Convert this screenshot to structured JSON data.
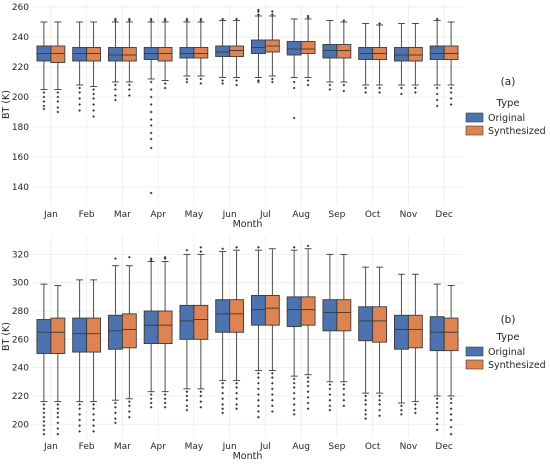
{
  "colors": {
    "original": "#4c72b0",
    "synthesized": "#dd8452",
    "plot_background": "#ffffff",
    "grid": "#ebebeb",
    "whisker": "#3a3a3a"
  },
  "chart_data": [
    {
      "type": "box",
      "panel_label": "(a)",
      "xlabel": "Month",
      "ylabel": "BT (K)",
      "ylim": [
        128,
        262
      ],
      "yticks": [
        140,
        160,
        180,
        200,
        220,
        240,
        260
      ],
      "grid": true,
      "legend_placement": "right",
      "legend_title": "Type",
      "categories": [
        "Jan",
        "Feb",
        "Mar",
        "Apr",
        "May",
        "Jun",
        "Jul",
        "Aug",
        "Sep",
        "Oct",
        "Nov",
        "Dec"
      ],
      "series": [
        {
          "name": "Original",
          "stats": [
            {
              "q1": 224,
              "median": 229,
              "q3": 234,
              "whislo": 205,
              "whishi": 250,
              "fliers": [
                203,
                200,
                197,
                194,
                192
              ]
            },
            {
              "q1": 224,
              "median": 229,
              "q3": 233,
              "whislo": 208,
              "whishi": 250,
              "fliers": [
                206,
                203,
                199,
                195,
                191
              ]
            },
            {
              "q1": 224,
              "median": 228,
              "q3": 233,
              "whislo": 210,
              "whishi": 250,
              "fliers": [
                251,
                252,
                208,
                205,
                201,
                198
              ]
            },
            {
              "q1": 225,
              "median": 229,
              "q3": 233,
              "whislo": 212,
              "whishi": 250,
              "fliers": [
                251,
                252,
                210,
                205,
                200,
                195,
                190,
                185,
                181,
                176,
                172,
                166,
                136
              ]
            },
            {
              "q1": 226,
              "median": 229,
              "q3": 233,
              "whislo": 214,
              "whishi": 250,
              "fliers": [
                251,
                252,
                212,
                210
              ]
            },
            {
              "q1": 227,
              "median": 230,
              "q3": 234,
              "whislo": 213,
              "whishi": 251,
              "fliers": [
                252,
                211,
                209
              ]
            },
            {
              "q1": 229,
              "median": 233,
              "q3": 238,
              "whislo": 213,
              "whishi": 254,
              "fliers": [
                255,
                257,
                258,
                211,
                210
              ]
            },
            {
              "q1": 228,
              "median": 232,
              "q3": 237,
              "whislo": 213,
              "whishi": 252,
              "fliers": [
                210,
                206,
                186
              ]
            },
            {
              "q1": 226,
              "median": 231,
              "q3": 235,
              "whislo": 210,
              "whishi": 251,
              "fliers": [
                208,
                205
              ]
            },
            {
              "q1": 225,
              "median": 229,
              "q3": 233,
              "whislo": 208,
              "whishi": 249,
              "fliers": [
                206,
                203
              ]
            },
            {
              "q1": 224,
              "median": 228,
              "q3": 233,
              "whislo": 208,
              "whishi": 249,
              "fliers": [
                206,
                202
              ]
            },
            {
              "q1": 225,
              "median": 229,
              "q3": 234,
              "whislo": 208,
              "whishi": 251,
              "fliers": [
                252,
                206,
                202,
                198,
                194
              ]
            }
          ]
        },
        {
          "name": "Synthesized",
          "stats": [
            {
              "q1": 223,
              "median": 229,
              "q3": 234,
              "whislo": 205,
              "whishi": 250,
              "fliers": [
                203,
                200,
                197,
                193,
                190
              ]
            },
            {
              "q1": 224,
              "median": 229,
              "q3": 233,
              "whislo": 207,
              "whishi": 250,
              "fliers": [
                205,
                202,
                199,
                195,
                191,
                187
              ]
            },
            {
              "q1": 224,
              "median": 228,
              "q3": 233,
              "whislo": 210,
              "whishi": 250,
              "fliers": [
                251,
                252,
                208,
                205,
                201
              ]
            },
            {
              "q1": 224,
              "median": 229,
              "q3": 233,
              "whislo": 211,
              "whishi": 250,
              "fliers": [
                251,
                252,
                209,
                206
              ]
            },
            {
              "q1": 226,
              "median": 229,
              "q3": 233,
              "whislo": 214,
              "whishi": 250,
              "fliers": [
                251,
                252,
                212,
                209
              ]
            },
            {
              "q1": 227,
              "median": 231,
              "q3": 234,
              "whislo": 213,
              "whishi": 251,
              "fliers": [
                252,
                211,
                208
              ]
            },
            {
              "q1": 230,
              "median": 234,
              "q3": 238,
              "whislo": 214,
              "whishi": 254,
              "fliers": [
                255,
                257,
                212,
                210
              ]
            },
            {
              "q1": 229,
              "median": 232,
              "q3": 237,
              "whislo": 213,
              "whishi": 252,
              "fliers": [
                253,
                254,
                211,
                208
              ]
            },
            {
              "q1": 226,
              "median": 231,
              "q3": 235,
              "whislo": 210,
              "whishi": 250,
              "fliers": [
                251,
                208,
                204
              ]
            },
            {
              "q1": 225,
              "median": 229,
              "q3": 233,
              "whislo": 208,
              "whishi": 248,
              "fliers": [
                249,
                206,
                203
              ]
            },
            {
              "q1": 224,
              "median": 228,
              "q3": 233,
              "whislo": 208,
              "whishi": 249,
              "fliers": [
                206,
                203
              ]
            },
            {
              "q1": 225,
              "median": 229,
              "q3": 234,
              "whislo": 208,
              "whishi": 250,
              "fliers": [
                206,
                203,
                199,
                195
              ]
            }
          ]
        }
      ]
    },
    {
      "type": "box",
      "panel_label": "(b)",
      "xlabel": "Month",
      "ylabel": "BT (K)",
      "ylim": [
        191,
        333
      ],
      "yticks": [
        200,
        220,
        240,
        260,
        280,
        300,
        320
      ],
      "grid": true,
      "legend_placement": "right",
      "legend_title": "Type",
      "categories": [
        "Jan",
        "Feb",
        "Mar",
        "Apr",
        "May",
        "Jun",
        "Jul",
        "Aug",
        "Sep",
        "Oct",
        "Nov",
        "Dec"
      ],
      "series": [
        {
          "name": "Original",
          "stats": [
            {
              "q1": 250,
              "median": 265,
              "q3": 274,
              "whislo": 216,
              "whishi": 299,
              "fliers": [
                214,
                211,
                208,
                205,
                202,
                199,
                196,
                193
              ]
            },
            {
              "q1": 251,
              "median": 264,
              "q3": 275,
              "whislo": 216,
              "whishi": 302,
              "fliers": [
                214,
                211,
                207,
                203,
                199,
                195
              ]
            },
            {
              "q1": 253,
              "median": 266,
              "q3": 277,
              "whislo": 217,
              "whishi": 312,
              "fliers": [
                317,
                215,
                212,
                208,
                204,
                201
              ]
            },
            {
              "q1": 257,
              "median": 270,
              "q3": 280,
              "whislo": 223,
              "whishi": 315,
              "fliers": [
                316,
                317,
                221,
                218,
                215,
                212
              ]
            },
            {
              "q1": 260,
              "median": 273,
              "q3": 284,
              "whislo": 225,
              "whishi": 320,
              "fliers": [
                323,
                223,
                220,
                217,
                213,
                210
              ]
            },
            {
              "q1": 265,
              "median": 278,
              "q3": 288,
              "whislo": 231,
              "whishi": 322,
              "fliers": [
                324,
                229,
                226,
                222,
                218,
                214,
                211,
                208
              ]
            },
            {
              "q1": 270,
              "median": 281,
              "q3": 291,
              "whislo": 238,
              "whishi": 323,
              "fliers": [
                325,
                236,
                233,
                229,
                225,
                221,
                217,
                213,
                209,
                205
              ]
            },
            {
              "q1": 269,
              "median": 281,
              "q3": 290,
              "whislo": 234,
              "whishi": 323,
              "fliers": [
                325,
                232,
                229,
                226,
                222,
                218,
                214,
                210,
                207
              ]
            },
            {
              "q1": 266,
              "median": 279,
              "q3": 288,
              "whislo": 230,
              "whishi": 320,
              "fliers": [
                228,
                225,
                221,
                217,
                213,
                210
              ]
            },
            {
              "q1": 259,
              "median": 273,
              "q3": 283,
              "whislo": 222,
              "whishi": 311,
              "fliers": [
                220,
                217,
                214,
                210,
                207,
                204
              ]
            },
            {
              "q1": 253,
              "median": 267,
              "q3": 277,
              "whislo": 215,
              "whishi": 306,
              "fliers": [
                213,
                210,
                207
              ]
            },
            {
              "q1": 252,
              "median": 265,
              "q3": 276,
              "whislo": 220,
              "whishi": 299,
              "fliers": [
                218,
                215,
                212,
                208,
                204,
                200,
                196
              ]
            }
          ]
        },
        {
          "name": "Synthesized",
          "stats": [
            {
              "q1": 250,
              "median": 265,
              "q3": 275,
              "whislo": 216,
              "whishi": 298,
              "fliers": [
                214,
                211,
                208,
                205,
                201,
                197,
                193
              ]
            },
            {
              "q1": 251,
              "median": 264,
              "q3": 275,
              "whislo": 216,
              "whishi": 302,
              "fliers": [
                214,
                211,
                207,
                203,
                199,
                195
              ]
            },
            {
              "q1": 254,
              "median": 267,
              "q3": 278,
              "whislo": 218,
              "whishi": 312,
              "fliers": [
                318,
                216,
                213,
                209,
                205
              ]
            },
            {
              "q1": 257,
              "median": 270,
              "q3": 280,
              "whislo": 223,
              "whishi": 315,
              "fliers": [
                317,
                318,
                221,
                218,
                215,
                212
              ]
            },
            {
              "q1": 260,
              "median": 274,
              "q3": 284,
              "whislo": 225,
              "whishi": 320,
              "fliers": [
                322,
                325,
                223,
                220,
                216,
                212
              ]
            },
            {
              "q1": 265,
              "median": 278,
              "q3": 288,
              "whislo": 231,
              "whishi": 323,
              "fliers": [
                325,
                229,
                226,
                222,
                218,
                214,
                211
              ]
            },
            {
              "q1": 270,
              "median": 282,
              "q3": 291,
              "whislo": 238,
              "whishi": 324,
              "fliers": [
                236,
                233,
                229,
                225,
                221,
                217,
                213,
                209
              ]
            },
            {
              "q1": 270,
              "median": 281,
              "q3": 290,
              "whislo": 235,
              "whishi": 324,
              "fliers": [
                326,
                233,
                230,
                227,
                223,
                219,
                215,
                211
              ]
            },
            {
              "q1": 266,
              "median": 279,
              "q3": 288,
              "whislo": 230,
              "whishi": 320,
              "fliers": [
                228,
                225,
                221,
                217,
                213
              ]
            },
            {
              "q1": 258,
              "median": 273,
              "q3": 283,
              "whislo": 222,
              "whishi": 311,
              "fliers": [
                220,
                217,
                214,
                210,
                206
              ]
            },
            {
              "q1": 254,
              "median": 267,
              "q3": 277,
              "whislo": 216,
              "whishi": 306,
              "fliers": [
                214,
                211,
                208
              ]
            },
            {
              "q1": 252,
              "median": 265,
              "q3": 275,
              "whislo": 220,
              "whishi": 298,
              "fliers": [
                218,
                215,
                211,
                207,
                203,
                198,
                193
              ]
            }
          ]
        }
      ]
    }
  ]
}
